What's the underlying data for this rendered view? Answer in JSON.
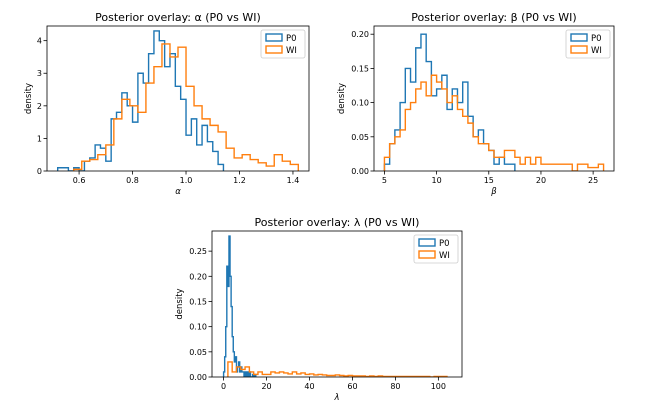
{
  "colors": {
    "p0": "#1f77b4",
    "wi": "#ff7f0e"
  },
  "chart_data": [
    {
      "type": "histogram",
      "title": "Posterior overlay: α (P0 vs WI)",
      "xlabel": "α",
      "ylabel": "density",
      "xlim": [
        0.48,
        1.46
      ],
      "ylim": [
        0,
        4.45
      ],
      "xticks": [
        0.6,
        0.8,
        1.0,
        1.2,
        1.4
      ],
      "xtick_labels": [
        "0.6",
        "0.8",
        "1.0",
        "1.2",
        "1.4"
      ],
      "yticks": [
        0,
        1,
        2,
        3,
        4
      ],
      "ytick_labels": [
        "0",
        "1",
        "2",
        "3",
        "4"
      ],
      "legend": {
        "position": "upper right",
        "entries": [
          "P0",
          "WI"
        ]
      },
      "series": [
        {
          "name": "P0",
          "color": "#1f77b4",
          "edges": [
            0.52,
            0.54,
            0.56,
            0.58,
            0.6,
            0.62,
            0.64,
            0.66,
            0.68,
            0.7,
            0.72,
            0.74,
            0.76,
            0.78,
            0.8,
            0.82,
            0.84,
            0.86,
            0.88,
            0.9,
            0.92,
            0.94,
            0.96,
            0.98,
            1.0,
            1.02,
            1.04,
            1.06,
            1.08,
            1.1,
            1.12,
            1.14
          ],
          "values": [
            0.1,
            0.1,
            0,
            0.1,
            0,
            0.3,
            0.4,
            0.8,
            0.7,
            0.3,
            1.6,
            1.8,
            2.4,
            2.0,
            1.5,
            3.0,
            2.7,
            3.6,
            4.3,
            4.0,
            3.2,
            3.6,
            2.6,
            2.2,
            1.1,
            1.6,
            0.8,
            1.4,
            0.9,
            0.6,
            0.2
          ]
        },
        {
          "name": "WI",
          "color": "#ff7f0e",
          "edges": [
            0.58,
            0.61,
            0.64,
            0.67,
            0.7,
            0.73,
            0.76,
            0.79,
            0.82,
            0.85,
            0.88,
            0.91,
            0.94,
            0.97,
            1.0,
            1.03,
            1.06,
            1.09,
            1.12,
            1.15,
            1.18,
            1.21,
            1.24,
            1.27,
            1.3,
            1.33,
            1.36,
            1.39,
            1.42
          ],
          "values": [
            0.05,
            0.3,
            0.35,
            0.5,
            0.8,
            1.6,
            2.2,
            2.0,
            1.8,
            2.7,
            3.2,
            3.9,
            3.5,
            3.8,
            2.6,
            2.0,
            1.6,
            1.4,
            1.2,
            0.7,
            0.4,
            0.5,
            0.35,
            0.25,
            0.15,
            0.5,
            0.3,
            0.2
          ]
        }
      ]
    },
    {
      "type": "histogram",
      "title": "Posterior overlay: β (P0 vs WI)",
      "xlabel": "β",
      "ylabel": "density",
      "xlim": [
        4.0,
        27.0
      ],
      "ylim": [
        0,
        0.212
      ],
      "xticks": [
        5,
        10,
        15,
        20,
        25
      ],
      "xtick_labels": [
        "5",
        "10",
        "15",
        "20",
        "25"
      ],
      "yticks": [
        0,
        0.05,
        0.1,
        0.15,
        0.2
      ],
      "ytick_labels": [
        "0.00",
        "0.05",
        "0.10",
        "0.15",
        "0.20"
      ],
      "legend": {
        "position": "upper right",
        "entries": [
          "P0",
          "WI"
        ]
      },
      "series": [
        {
          "name": "P0",
          "color": "#1f77b4",
          "edges": [
            5.0,
            5.5,
            6.0,
            6.5,
            7.0,
            7.5,
            8.0,
            8.5,
            9.0,
            9.5,
            10.0,
            10.5,
            11.0,
            11.5,
            12.0,
            12.5,
            13.0,
            13.5,
            14.0,
            14.5,
            15.0,
            15.5,
            16.0,
            16.5,
            17.0,
            17.5
          ],
          "values": [
            0.01,
            0.04,
            0.06,
            0.1,
            0.15,
            0.13,
            0.18,
            0.2,
            0.16,
            0.11,
            0.12,
            0.14,
            0.09,
            0.12,
            0.1,
            0.13,
            0.08,
            0.05,
            0.06,
            0.04,
            0.03,
            0.01,
            0.02,
            0.01,
            0.01
          ]
        },
        {
          "name": "WI",
          "color": "#ff7f0e",
          "edges": [
            5.0,
            5.5,
            6.0,
            6.5,
            7.0,
            7.5,
            8.0,
            8.5,
            9.0,
            9.5,
            10.0,
            10.5,
            11.0,
            11.5,
            12.0,
            12.5,
            13.0,
            13.5,
            14.0,
            14.5,
            15.0,
            15.5,
            16.0,
            16.5,
            17.0,
            17.5,
            18.0,
            18.5,
            19.0,
            19.5,
            20.0,
            20.5,
            21.0,
            21.5,
            22.0,
            22.5,
            23.0,
            23.5,
            24.0,
            24.5,
            25.0,
            25.5,
            26.0
          ],
          "values": [
            0.02,
            0.04,
            0.05,
            0.06,
            0.09,
            0.1,
            0.12,
            0.13,
            0.11,
            0.14,
            0.13,
            0.12,
            0.1,
            0.11,
            0.09,
            0.08,
            0.07,
            0.05,
            0.04,
            0.04,
            0.03,
            0.02,
            0.02,
            0.03,
            0.03,
            0.02,
            0.01,
            0.02,
            0.01,
            0.02,
            0.01,
            0.01,
            0.01,
            0.01,
            0.01,
            0.01,
            0,
            0.01,
            0.01,
            0.005,
            0.005,
            0.01
          ]
        }
      ]
    },
    {
      "type": "histogram",
      "title": "Posterior overlay: λ (P0 vs WI)",
      "xlabel": "λ",
      "ylabel": "density",
      "xlim": [
        -5.4,
        111
      ],
      "ylim": [
        0,
        0.29
      ],
      "xticks": [
        0,
        20,
        40,
        60,
        80,
        100
      ],
      "xtick_labels": [
        "0",
        "20",
        "40",
        "60",
        "80",
        "100"
      ],
      "yticks": [
        0,
        0.05,
        0.1,
        0.15,
        0.2,
        0.25
      ],
      "ytick_labels": [
        "0.00",
        "0.05",
        "0.10",
        "0.15",
        "0.20",
        "0.25"
      ],
      "legend": {
        "position": "upper right",
        "entries": [
          "P0",
          "WI"
        ]
      },
      "series": [
        {
          "name": "P0",
          "color": "#1f77b4",
          "edges": [
            0,
            0.5,
            1,
            1.5,
            2,
            2.5,
            3,
            3.5,
            4,
            4.5,
            5,
            5.5,
            6,
            6.5,
            7,
            7.5,
            8,
            8.5,
            9,
            9.5,
            10,
            10.5,
            11,
            11.5,
            12,
            12.5,
            13,
            13.5,
            14,
            14.5,
            15
          ],
          "values": [
            0.01,
            0.04,
            0.1,
            0.22,
            0.18,
            0.28,
            0.2,
            0.14,
            0.08,
            0.05,
            0.03,
            0.04,
            0.01,
            0.02,
            0.03,
            0.01,
            0.02,
            0.01,
            0.01,
            0,
            0.01,
            0,
            0.01,
            0,
            0.01,
            0,
            0,
            0.005,
            0,
            0.005
          ]
        },
        {
          "name": "WI",
          "color": "#ff7f0e",
          "edges": [
            2,
            4,
            6,
            8,
            10,
            12,
            14,
            16,
            18,
            20,
            22,
            24,
            26,
            28,
            30,
            32,
            34,
            36,
            38,
            40,
            42,
            44,
            46,
            48,
            50,
            52,
            54,
            56,
            58,
            60,
            62,
            64,
            66,
            68,
            70,
            72,
            74,
            76,
            78,
            80,
            82,
            84,
            86,
            88,
            90,
            92,
            94,
            96,
            98,
            100,
            102,
            104
          ],
          "values": [
            0.03,
            0.01,
            0.02,
            0.015,
            0.02,
            0.01,
            0.005,
            0.01,
            0.005,
            0.005,
            0.01,
            0.008,
            0.01,
            0.008,
            0.006,
            0.01,
            0.006,
            0.008,
            0.005,
            0.006,
            0.004,
            0.005,
            0.004,
            0.003,
            0.003,
            0.004,
            0.003,
            0.002,
            0.003,
            0.002,
            0.002,
            0.002,
            0.001,
            0.002,
            0.001,
            0.002,
            0.001,
            0.001,
            0.001,
            0.001,
            0.001,
            0.001,
            0.001,
            0.001,
            0.001,
            0.001,
            0.001,
            0,
            0.001,
            0.001,
            0.001
          ]
        }
      ]
    }
  ]
}
